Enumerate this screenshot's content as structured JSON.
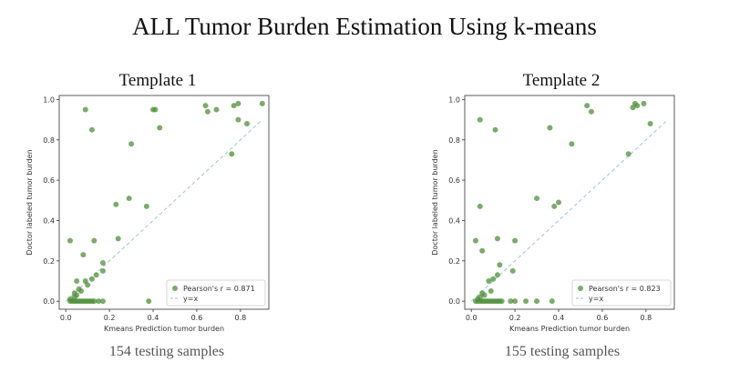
{
  "title": "ALL Tumor Burden Estimation Using k-means",
  "colors": {
    "point": "#4f8f3a",
    "fit_line": "#9ec3d6",
    "axes": "#333333"
  },
  "chart_data": [
    {
      "type": "scatter",
      "title": "Template 1",
      "caption": "154 testing samples",
      "xlabel": "Kmeans Prediction tumor burden",
      "ylabel": "Doctor labeled tumor burden",
      "xlim": [
        -0.03,
        0.93
      ],
      "ylim": [
        -0.04,
        1.02
      ],
      "xticks": [
        "0.0",
        "0.2",
        "0.4",
        "0.6",
        "0.8"
      ],
      "xtick_values": [
        0.0,
        0.2,
        0.4,
        0.6,
        0.8
      ],
      "yticks": [
        "0.0",
        "0.2",
        "0.4",
        "0.6",
        "0.8",
        "1.0"
      ],
      "ytick_values": [
        0.0,
        0.2,
        0.4,
        0.6,
        0.8,
        1.0
      ],
      "grid": false,
      "legend_position": "lower-right",
      "legend": {
        "series": "Pearson's r = 0.871",
        "reference": "y=x"
      },
      "reference_line": {
        "from": [
          0.0,
          0.0
        ],
        "to": [
          0.9,
          0.9
        ]
      },
      "points": [
        [
          0.02,
          0.0
        ],
        [
          0.03,
          0.0
        ],
        [
          0.04,
          0.0
        ],
        [
          0.05,
          0.0
        ],
        [
          0.06,
          0.0
        ],
        [
          0.07,
          0.0
        ],
        [
          0.08,
          0.0
        ],
        [
          0.09,
          0.0
        ],
        [
          0.1,
          0.0
        ],
        [
          0.11,
          0.0
        ],
        [
          0.12,
          0.0
        ],
        [
          0.13,
          0.0
        ],
        [
          0.15,
          0.0
        ],
        [
          0.17,
          0.0
        ],
        [
          0.38,
          0.0
        ],
        [
          0.02,
          0.01
        ],
        [
          0.04,
          0.02
        ],
        [
          0.05,
          0.03
        ],
        [
          0.04,
          0.04
        ],
        [
          0.07,
          0.05
        ],
        [
          0.06,
          0.06
        ],
        [
          0.1,
          0.08
        ],
        [
          0.05,
          0.1
        ],
        [
          0.09,
          0.1
        ],
        [
          0.12,
          0.11
        ],
        [
          0.14,
          0.13
        ],
        [
          0.17,
          0.15
        ],
        [
          0.17,
          0.19
        ],
        [
          0.08,
          0.23
        ],
        [
          0.02,
          0.3
        ],
        [
          0.13,
          0.3
        ],
        [
          0.24,
          0.31
        ],
        [
          0.23,
          0.48
        ],
        [
          0.29,
          0.51
        ],
        [
          0.37,
          0.47
        ],
        [
          0.3,
          0.78
        ],
        [
          0.43,
          0.86
        ],
        [
          0.12,
          0.85
        ],
        [
          0.09,
          0.95
        ],
        [
          0.4,
          0.95
        ],
        [
          0.41,
          0.95
        ],
        [
          0.64,
          0.97
        ],
        [
          0.65,
          0.94
        ],
        [
          0.69,
          0.95
        ],
        [
          0.77,
          0.97
        ],
        [
          0.79,
          0.98
        ],
        [
          0.9,
          0.98
        ],
        [
          0.79,
          0.9
        ],
        [
          0.83,
          0.88
        ],
        [
          0.76,
          0.73
        ]
      ]
    },
    {
      "type": "scatter",
      "title": "Template 2",
      "caption": "155 testing samples",
      "xlabel": "Kmeans Prediction tumor burden",
      "ylabel": "Doctor labeled tumor burden",
      "xlim": [
        -0.03,
        0.93
      ],
      "ylim": [
        -0.04,
        1.02
      ],
      "xticks": [
        "0.0",
        "0.2",
        "0.4",
        "0.6",
        "0.8"
      ],
      "xtick_values": [
        0.0,
        0.2,
        0.4,
        0.6,
        0.8
      ],
      "yticks": [
        "0.0",
        "0.2",
        "0.4",
        "0.6",
        "0.8",
        "1.0"
      ],
      "ytick_values": [
        0.0,
        0.2,
        0.4,
        0.6,
        0.8,
        1.0
      ],
      "grid": false,
      "legend_position": "lower-right",
      "legend": {
        "series": "Pearson's r = 0.823",
        "reference": "y=x"
      },
      "reference_line": {
        "from": [
          0.0,
          0.0
        ],
        "to": [
          0.9,
          0.9
        ]
      },
      "points": [
        [
          0.02,
          0.0
        ],
        [
          0.03,
          0.0
        ],
        [
          0.04,
          0.0
        ],
        [
          0.05,
          0.0
        ],
        [
          0.06,
          0.0
        ],
        [
          0.07,
          0.0
        ],
        [
          0.08,
          0.0
        ],
        [
          0.09,
          0.0
        ],
        [
          0.1,
          0.0
        ],
        [
          0.11,
          0.0
        ],
        [
          0.12,
          0.0
        ],
        [
          0.13,
          0.0
        ],
        [
          0.14,
          0.0
        ],
        [
          0.18,
          0.0
        ],
        [
          0.2,
          0.0
        ],
        [
          0.25,
          0.0
        ],
        [
          0.3,
          0.0
        ],
        [
          0.37,
          0.0
        ],
        [
          0.03,
          0.01
        ],
        [
          0.04,
          0.02
        ],
        [
          0.06,
          0.03
        ],
        [
          0.05,
          0.04
        ],
        [
          0.09,
          0.05
        ],
        [
          0.08,
          0.1
        ],
        [
          0.1,
          0.11
        ],
        [
          0.12,
          0.13
        ],
        [
          0.13,
          0.18
        ],
        [
          0.19,
          0.15
        ],
        [
          0.05,
          0.25
        ],
        [
          0.02,
          0.3
        ],
        [
          0.12,
          0.31
        ],
        [
          0.2,
          0.3
        ],
        [
          0.3,
          0.51
        ],
        [
          0.38,
          0.47
        ],
        [
          0.4,
          0.49
        ],
        [
          0.04,
          0.47
        ],
        [
          0.36,
          0.86
        ],
        [
          0.46,
          0.78
        ],
        [
          0.11,
          0.85
        ],
        [
          0.04,
          0.9
        ],
        [
          0.53,
          0.97
        ],
        [
          0.55,
          0.94
        ],
        [
          0.74,
          0.96
        ],
        [
          0.76,
          0.97
        ],
        [
          0.75,
          0.98
        ],
        [
          0.79,
          0.98
        ],
        [
          0.72,
          0.73
        ],
        [
          0.82,
          0.88
        ]
      ]
    }
  ]
}
